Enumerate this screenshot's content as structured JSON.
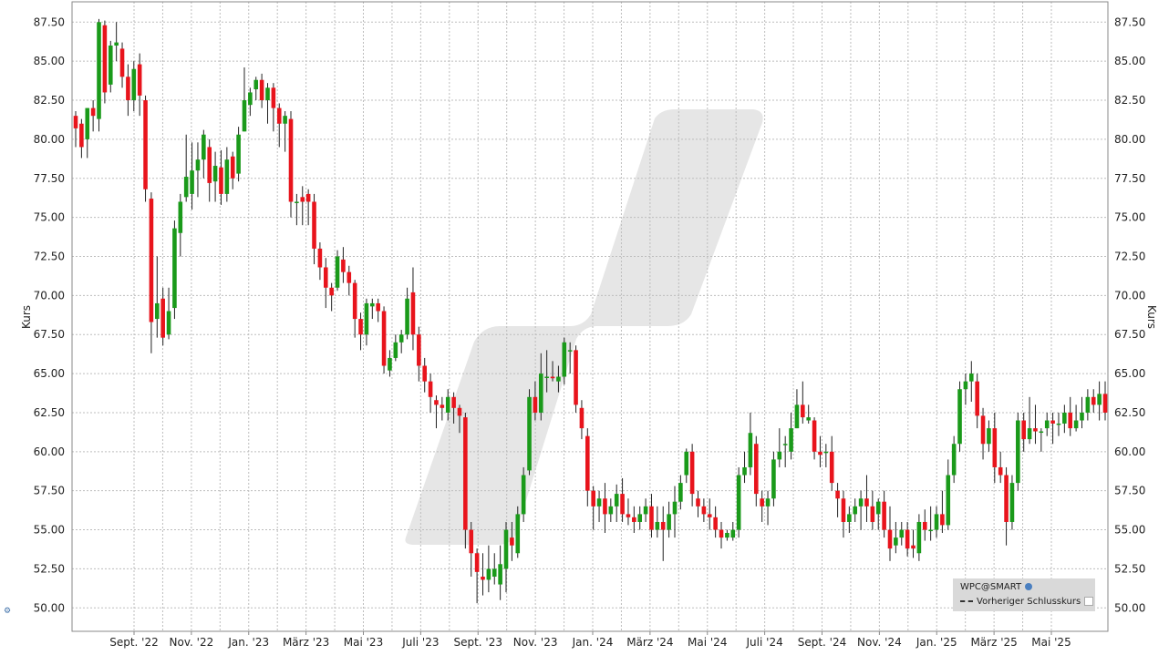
{
  "chart_data": {
    "type": "candlestick",
    "symbol": "WPC@SMART",
    "ylabel": "Kurs",
    "ylim": [
      48.5,
      88.8
    ],
    "y_ticks": [
      "50.00",
      "52.50",
      "55.00",
      "57.50",
      "60.00",
      "62.50",
      "65.00",
      "67.50",
      "70.00",
      "72.50",
      "75.00",
      "77.50",
      "80.00",
      "82.50",
      "85.00",
      "87.50"
    ],
    "x_tick_labels": [
      "Sept. '22",
      "Nov. '22",
      "Jan. '23",
      "März '23",
      "Mai '23",
      "Juli '23",
      "Sept. '23",
      "Nov. '23",
      "Jan. '24",
      "März '24",
      "Mai '24",
      "Juli '24",
      "Sept. '24",
      "Nov. '24",
      "Jan. '25",
      "März '25",
      "Mai '25"
    ],
    "grid": true,
    "legend": {
      "position": "bottom-right",
      "entries": [
        "WPC@SMART",
        "Vorheriger Schlusskurs"
      ]
    },
    "colors": {
      "up": "#1a9a1a",
      "down": "#e8141c",
      "grid": "#bdbdbd",
      "watermark": "#e6e6e6"
    },
    "series": [
      [
        81.5,
        80.7,
        81.8,
        79.5
      ],
      [
        81.0,
        79.5,
        81.3,
        78.8
      ],
      [
        80.0,
        82.0,
        82.0,
        78.8
      ],
      [
        82.0,
        81.5,
        82.5,
        80.5
      ],
      [
        81.3,
        87.5,
        87.7,
        80.5
      ],
      [
        87.3,
        83.0,
        87.6,
        82.3
      ],
      [
        83.5,
        86.0,
        86.3,
        83.0
      ],
      [
        86.0,
        86.2,
        87.5,
        85.0
      ],
      [
        85.8,
        84.0,
        86.2,
        83.3
      ],
      [
        84.0,
        82.5,
        84.8,
        81.5
      ],
      [
        82.5,
        84.5,
        85.0,
        81.8
      ],
      [
        84.8,
        82.8,
        85.5,
        81.5
      ],
      [
        82.5,
        76.8,
        82.8,
        76.0
      ],
      [
        76.2,
        68.3,
        76.6,
        66.3
      ],
      [
        68.5,
        69.5,
        72.5,
        67.3
      ],
      [
        69.8,
        67.3,
        70.5,
        66.8
      ],
      [
        67.5,
        69.0,
        70.5,
        67.2
      ],
      [
        69.2,
        74.3,
        74.8,
        68.5
      ],
      [
        74.0,
        76.0,
        76.5,
        72.5
      ],
      [
        76.3,
        77.6,
        80.3,
        76.0
      ],
      [
        76.5,
        78.0,
        79.8,
        75.5
      ],
      [
        78.0,
        78.7,
        79.8,
        76.3
      ],
      [
        78.7,
        80.3,
        80.6,
        77.5
      ],
      [
        79.5,
        77.2,
        80.0,
        76.0
      ],
      [
        77.3,
        78.3,
        79.2,
        76.0
      ],
      [
        78.2,
        76.5,
        79.3,
        75.8
      ],
      [
        76.5,
        78.7,
        79.5,
        76.0
      ],
      [
        78.9,
        77.5,
        79.2,
        76.8
      ],
      [
        77.8,
        80.3,
        80.8,
        77.3
      ],
      [
        80.5,
        82.5,
        84.6,
        80.5
      ],
      [
        82.2,
        83.0,
        83.3,
        81.5
      ],
      [
        83.2,
        83.8,
        84.0,
        82.5
      ],
      [
        83.8,
        82.5,
        84.2,
        82.0
      ],
      [
        82.5,
        83.3,
        83.6,
        81.0
      ],
      [
        83.3,
        82.0,
        83.6,
        80.5
      ],
      [
        82.0,
        81.0,
        82.3,
        79.5
      ],
      [
        81.0,
        81.5,
        81.8,
        79.2
      ],
      [
        81.3,
        76.0,
        81.8,
        75.0
      ],
      [
        76.0,
        76.0,
        76.5,
        74.5
      ],
      [
        76.3,
        76.0,
        77.0,
        74.5
      ],
      [
        76.5,
        76.0,
        76.8,
        74.5
      ],
      [
        76.0,
        73.0,
        76.5,
        72.0
      ],
      [
        73.0,
        71.8,
        73.4,
        71.0
      ],
      [
        71.8,
        70.5,
        72.4,
        69.2
      ],
      [
        70.5,
        70.0,
        70.8,
        69.0
      ],
      [
        70.5,
        72.5,
        72.9,
        70.3
      ],
      [
        72.3,
        71.5,
        73.1,
        70.8
      ],
      [
        71.5,
        70.8,
        71.9,
        70.0
      ],
      [
        70.8,
        68.5,
        71.0,
        67.3
      ],
      [
        68.5,
        67.5,
        68.9,
        66.5
      ],
      [
        67.5,
        69.5,
        69.8,
        66.8
      ],
      [
        69.3,
        69.5,
        69.8,
        68.5
      ],
      [
        69.5,
        69.0,
        69.8,
        68.3
      ],
      [
        69.0,
        65.5,
        69.3,
        65.0
      ],
      [
        65.2,
        66.0,
        66.5,
        64.8
      ],
      [
        66.0,
        67.0,
        67.5,
        65.8
      ],
      [
        67.0,
        67.5,
        67.8,
        66.3
      ],
      [
        67.5,
        69.8,
        70.5,
        67.2
      ],
      [
        70.2,
        67.5,
        71.8,
        66.5
      ],
      [
        67.5,
        65.5,
        68.0,
        64.5
      ],
      [
        65.5,
        64.5,
        66.0,
        63.8
      ],
      [
        64.5,
        63.5,
        65.0,
        62.5
      ],
      [
        63.3,
        63.0,
        63.6,
        61.5
      ],
      [
        63.0,
        62.8,
        63.5,
        62.0
      ],
      [
        62.5,
        63.5,
        64.0,
        62.0
      ],
      [
        63.5,
        62.8,
        63.8,
        61.8
      ],
      [
        62.8,
        62.3,
        63.0,
        61.2
      ],
      [
        62.2,
        55.0,
        62.5,
        53.8
      ],
      [
        55.0,
        53.5,
        55.5,
        52.0
      ],
      [
        53.5,
        52.3,
        53.8,
        50.3
      ],
      [
        52.0,
        51.8,
        53.5,
        50.8
      ],
      [
        51.8,
        52.5,
        54.0,
        51.0
      ],
      [
        52.0,
        52.5,
        53.5,
        51.5
      ],
      [
        51.5,
        52.8,
        54.0,
        50.5
      ],
      [
        52.5,
        55.0,
        55.5,
        51.0
      ],
      [
        54.5,
        54.0,
        55.5,
        53.0
      ],
      [
        53.5,
        56.0,
        56.5,
        53.2
      ],
      [
        56.0,
        58.5,
        59.0,
        55.5
      ],
      [
        58.8,
        63.5,
        64.0,
        58.5
      ],
      [
        63.5,
        62.5,
        64.5,
        62.0
      ],
      [
        62.5,
        65.0,
        66.3,
        62.0
      ],
      [
        64.8,
        64.8,
        66.5,
        63.8
      ],
      [
        64.8,
        64.7,
        65.8,
        64.5
      ],
      [
        64.5,
        64.8,
        65.5,
        63.8
      ],
      [
        64.8,
        67.0,
        67.3,
        64.3
      ],
      [
        66.5,
        66.5,
        67.0,
        65.0
      ],
      [
        66.5,
        63.0,
        66.8,
        62.5
      ],
      [
        62.8,
        61.5,
        63.3,
        60.8
      ],
      [
        61.0,
        57.5,
        61.5,
        56.5
      ],
      [
        57.5,
        56.5,
        57.8,
        55.0
      ],
      [
        56.5,
        57.0,
        57.5,
        55.5
      ],
      [
        57.0,
        56.0,
        58.0,
        54.8
      ],
      [
        56.0,
        56.5,
        57.0,
        55.5
      ],
      [
        56.5,
        57.3,
        57.9,
        55.5
      ],
      [
        57.3,
        56.0,
        58.3,
        55.5
      ],
      [
        56.0,
        55.8,
        57.0,
        55.3
      ],
      [
        55.8,
        55.5,
        56.5,
        54.8
      ],
      [
        55.5,
        56.0,
        56.5,
        55.0
      ],
      [
        56.0,
        56.5,
        57.0,
        55.5
      ],
      [
        56.5,
        55.0,
        57.3,
        54.5
      ],
      [
        55.0,
        55.5,
        56.5,
        54.5
      ],
      [
        55.5,
        55.0,
        56.5,
        53.0
      ],
      [
        55.0,
        56.0,
        56.8,
        54.5
      ],
      [
        56.0,
        56.8,
        57.8,
        54.5
      ],
      [
        56.8,
        58.0,
        58.5,
        56.3
      ],
      [
        58.5,
        60.0,
        60.2,
        58.0
      ],
      [
        60.0,
        57.3,
        60.5,
        56.5
      ],
      [
        57.0,
        56.5,
        57.5,
        55.8
      ],
      [
        56.5,
        56.0,
        57.0,
        55.5
      ],
      [
        56.0,
        55.8,
        57.0,
        55.0
      ],
      [
        55.8,
        55.0,
        56.5,
        54.5
      ],
      [
        55.0,
        54.5,
        55.5,
        53.8
      ],
      [
        54.5,
        54.8,
        55.0,
        54.3
      ],
      [
        54.5,
        55.0,
        55.5,
        54.3
      ],
      [
        55.0,
        58.5,
        59.0,
        54.5
      ],
      [
        58.5,
        59.0,
        60.0,
        58.0
      ],
      [
        59.0,
        61.2,
        62.5,
        58.5
      ],
      [
        60.5,
        57.3,
        61.0,
        56.5
      ],
      [
        57.0,
        56.5,
        57.5,
        55.5
      ],
      [
        56.5,
        57.0,
        57.5,
        55.3
      ],
      [
        57.0,
        59.5,
        60.0,
        56.5
      ],
      [
        59.5,
        60.0,
        61.5,
        59.0
      ],
      [
        60.5,
        60.5,
        61.0,
        59.0
      ],
      [
        60.0,
        61.5,
        62.5,
        59.5
      ],
      [
        61.5,
        63.0,
        64.0,
        61.5
      ],
      [
        63.0,
        62.2,
        64.5,
        61.8
      ],
      [
        62.0,
        62.2,
        63.0,
        61.8
      ],
      [
        62.0,
        60.0,
        62.2,
        59.5
      ],
      [
        60.0,
        59.8,
        61.0,
        59.0
      ],
      [
        60.0,
        60.0,
        60.5,
        59.0
      ],
      [
        60.0,
        58.0,
        61.0,
        57.5
      ],
      [
        57.5,
        57.0,
        58.0,
        55.8
      ],
      [
        57.0,
        55.5,
        57.5,
        54.5
      ],
      [
        55.5,
        56.0,
        56.5,
        54.8
      ],
      [
        56.0,
        56.5,
        57.0,
        55.5
      ],
      [
        56.5,
        57.0,
        57.5,
        55.0
      ],
      [
        57.0,
        56.5,
        58.5,
        55.5
      ],
      [
        56.5,
        55.5,
        57.5,
        55.0
      ],
      [
        56.0,
        56.8,
        57.0,
        55.0
      ],
      [
        56.8,
        55.0,
        57.5,
        54.5
      ],
      [
        55.0,
        53.8,
        56.5,
        53.0
      ],
      [
        54.0,
        54.5,
        55.5,
        53.5
      ],
      [
        54.5,
        55.0,
        55.5,
        54.0
      ],
      [
        55.0,
        53.8,
        55.5,
        53.3
      ],
      [
        54.0,
        53.8,
        55.0,
        53.2
      ],
      [
        53.5,
        55.5,
        56.0,
        53.0
      ],
      [
        55.5,
        55.0,
        56.3,
        54.3
      ],
      [
        55.0,
        55.0,
        56.5,
        54.3
      ],
      [
        55.0,
        56.0,
        56.5,
        54.5
      ],
      [
        56.0,
        55.3,
        57.5,
        54.8
      ],
      [
        55.3,
        58.5,
        59.5,
        55.0
      ],
      [
        58.5,
        60.5,
        61.0,
        58.0
      ],
      [
        60.5,
        64.0,
        64.5,
        60.0
      ],
      [
        64.0,
        64.5,
        65.0,
        63.0
      ],
      [
        64.5,
        65.0,
        65.8,
        63.2
      ],
      [
        64.5,
        62.3,
        65.0,
        61.5
      ],
      [
        62.3,
        60.5,
        62.8,
        59.5
      ],
      [
        60.5,
        61.5,
        62.0,
        60.0
      ],
      [
        61.5,
        59.0,
        62.5,
        58.0
      ],
      [
        59.0,
        58.5,
        60.0,
        58.0
      ],
      [
        58.5,
        55.5,
        59.0,
        54.0
      ],
      [
        55.5,
        58.0,
        58.5,
        55.0
      ],
      [
        58.0,
        62.0,
        62.5,
        57.5
      ],
      [
        62.0,
        60.8,
        62.5,
        60.0
      ],
      [
        60.8,
        61.5,
        63.5,
        60.5
      ],
      [
        61.5,
        61.3,
        63.0,
        60.5
      ],
      [
        61.3,
        61.3,
        61.5,
        60.0
      ],
      [
        61.5,
        62.0,
        62.5,
        61.0
      ],
      [
        62.0,
        61.8,
        62.5,
        60.5
      ],
      [
        61.8,
        61.8,
        62.5,
        61.0
      ],
      [
        61.8,
        62.5,
        63.0,
        61.2
      ],
      [
        62.5,
        61.5,
        63.5,
        61.0
      ],
      [
        61.5,
        62.0,
        63.0,
        61.3
      ],
      [
        62.0,
        62.5,
        63.5,
        61.5
      ],
      [
        62.5,
        63.5,
        64.0,
        62.0
      ],
      [
        63.5,
        63.0,
        64.0,
        62.5
      ],
      [
        63.0,
        63.7,
        64.5,
        62.0
      ],
      [
        63.7,
        62.5,
        64.5,
        62.0
      ]
    ]
  }
}
